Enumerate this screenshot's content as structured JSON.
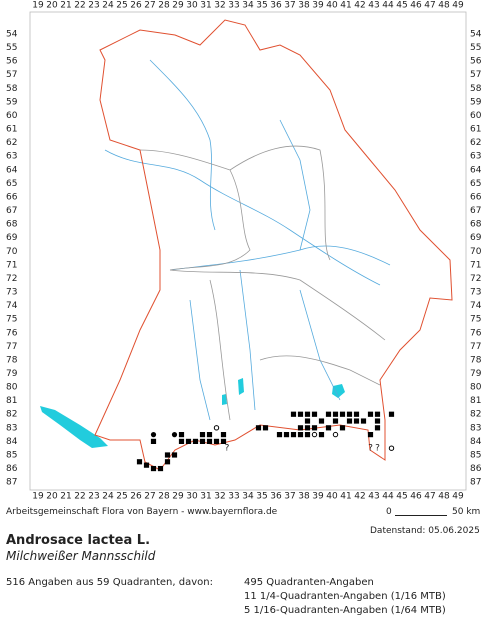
{
  "map": {
    "xticks": [
      19,
      20,
      21,
      22,
      23,
      24,
      25,
      26,
      27,
      28,
      29,
      30,
      31,
      32,
      33,
      34,
      35,
      36,
      37,
      38,
      39,
      40,
      41,
      42,
      43,
      44,
      45,
      46,
      47,
      48,
      49
    ],
    "yticks": [
      54,
      55,
      56,
      57,
      58,
      59,
      60,
      61,
      62,
      63,
      64,
      65,
      66,
      67,
      68,
      69,
      70,
      71,
      72,
      73,
      74,
      75,
      76,
      77,
      78,
      79,
      80,
      81,
      82,
      83,
      84,
      85,
      86,
      87
    ],
    "occurrences": [
      {
        "symbol": "square",
        "x": 37.25,
        "y": 82
      },
      {
        "symbol": "square",
        "x": 37.75,
        "y": 82
      },
      {
        "symbol": "square",
        "x": 38.25,
        "y": 82
      },
      {
        "symbol": "square",
        "x": 38.75,
        "y": 82
      },
      {
        "symbol": "square",
        "x": 39.75,
        "y": 82
      },
      {
        "symbol": "square",
        "x": 40.25,
        "y": 82
      },
      {
        "symbol": "square",
        "x": 40.75,
        "y": 82
      },
      {
        "symbol": "square",
        "x": 41.25,
        "y": 82
      },
      {
        "symbol": "square",
        "x": 41.75,
        "y": 82
      },
      {
        "symbol": "square",
        "x": 42.75,
        "y": 82
      },
      {
        "symbol": "square",
        "x": 43.25,
        "y": 82
      },
      {
        "symbol": "square",
        "x": 44.25,
        "y": 82
      },
      {
        "symbol": "square",
        "x": 38.25,
        "y": 82.5
      },
      {
        "symbol": "square",
        "x": 39.25,
        "y": 82.5
      },
      {
        "symbol": "square",
        "x": 40.25,
        "y": 82.5
      },
      {
        "symbol": "square",
        "x": 41.25,
        "y": 82.5
      },
      {
        "symbol": "square",
        "x": 41.75,
        "y": 82.5
      },
      {
        "symbol": "square",
        "x": 42.25,
        "y": 82.5
      },
      {
        "symbol": "square",
        "x": 43.25,
        "y": 82.5
      },
      {
        "symbol": "square",
        "x": 34.75,
        "y": 83
      },
      {
        "symbol": "square",
        "x": 35.25,
        "y": 83
      },
      {
        "symbol": "square",
        "x": 37.75,
        "y": 83
      },
      {
        "symbol": "square",
        "x": 38.25,
        "y": 83
      },
      {
        "symbol": "square",
        "x": 38.75,
        "y": 83
      },
      {
        "symbol": "square",
        "x": 39.75,
        "y": 83
      },
      {
        "symbol": "square",
        "x": 40.75,
        "y": 83
      },
      {
        "symbol": "square",
        "x": 43.25,
        "y": 83
      },
      {
        "symbol": "square",
        "x": 36.25,
        "y": 83.5
      },
      {
        "symbol": "square",
        "x": 36.75,
        "y": 83.5
      },
      {
        "symbol": "square",
        "x": 37.25,
        "y": 83.5
      },
      {
        "symbol": "square",
        "x": 37.75,
        "y": 83.5
      },
      {
        "symbol": "square",
        "x": 38.25,
        "y": 83.5
      },
      {
        "symbol": "square",
        "x": 39.25,
        "y": 83.5
      },
      {
        "symbol": "square",
        "x": 42.75,
        "y": 83.5
      },
      {
        "symbol": "square",
        "x": 29.25,
        "y": 83.5
      },
      {
        "symbol": "square",
        "x": 30.75,
        "y": 83.5
      },
      {
        "symbol": "square",
        "x": 31.25,
        "y": 83.5
      },
      {
        "symbol": "square",
        "x": 32.25,
        "y": 83.5
      },
      {
        "symbol": "square",
        "x": 27.25,
        "y": 84
      },
      {
        "symbol": "square",
        "x": 29.25,
        "y": 84
      },
      {
        "symbol": "square",
        "x": 29.75,
        "y": 84
      },
      {
        "symbol": "square",
        "x": 30.25,
        "y": 84
      },
      {
        "symbol": "square",
        "x": 30.75,
        "y": 84
      },
      {
        "symbol": "square",
        "x": 31.25,
        "y": 84
      },
      {
        "symbol": "square",
        "x": 31.75,
        "y": 84
      },
      {
        "symbol": "square",
        "x": 32.25,
        "y": 84
      },
      {
        "symbol": "square",
        "x": 28.25,
        "y": 85
      },
      {
        "symbol": "square",
        "x": 28.75,
        "y": 85
      },
      {
        "symbol": "square",
        "x": 26.25,
        "y": 85.5
      },
      {
        "symbol": "square",
        "x": 28.25,
        "y": 85.5
      },
      {
        "symbol": "square",
        "x": 27.25,
        "y": 86
      },
      {
        "symbol": "square",
        "x": 27.75,
        "y": 86
      },
      {
        "symbol": "square",
        "x": 26.75,
        "y": 85.75
      },
      {
        "symbol": "dot",
        "x": 27.25,
        "y": 83.5
      },
      {
        "symbol": "dot",
        "x": 28.75,
        "y": 83.5
      },
      {
        "symbol": "circle",
        "x": 31.75,
        "y": 83
      },
      {
        "symbol": "circle",
        "x": 40.25,
        "y": 83.5
      },
      {
        "symbol": "circle",
        "x": 44.25,
        "y": 84.5
      },
      {
        "symbol": "circle",
        "x": 38.75,
        "y": 83.5
      },
      {
        "symbol": "?",
        "x": 32.5,
        "y": 84.5
      },
      {
        "symbol": "?",
        "x": 42.75,
        "y": 84.5
      },
      {
        "symbol": "?",
        "x": 43.25,
        "y": 84.5
      }
    ]
  },
  "footer": {
    "credit": "Arbeitsgemeinschaft Flora von Bayern - www.bayernflora.de",
    "scale_start": "0",
    "scale_end": "50 km",
    "date": "Datenstand: 05.06.2025"
  },
  "species": {
    "name": "Androsace lactea L.",
    "common_name": "Milchweißer Mannsschild"
  },
  "stats": {
    "summary": "516 Angaben aus 59 Quadranten, davon:",
    "lines": [
      "495 Quadranten-Angaben",
      "11 1/4-Quadranten-Angaben (1/16 MTB)",
      "5 1/16-Quadranten-Angaben (1/64 MTB)"
    ]
  }
}
